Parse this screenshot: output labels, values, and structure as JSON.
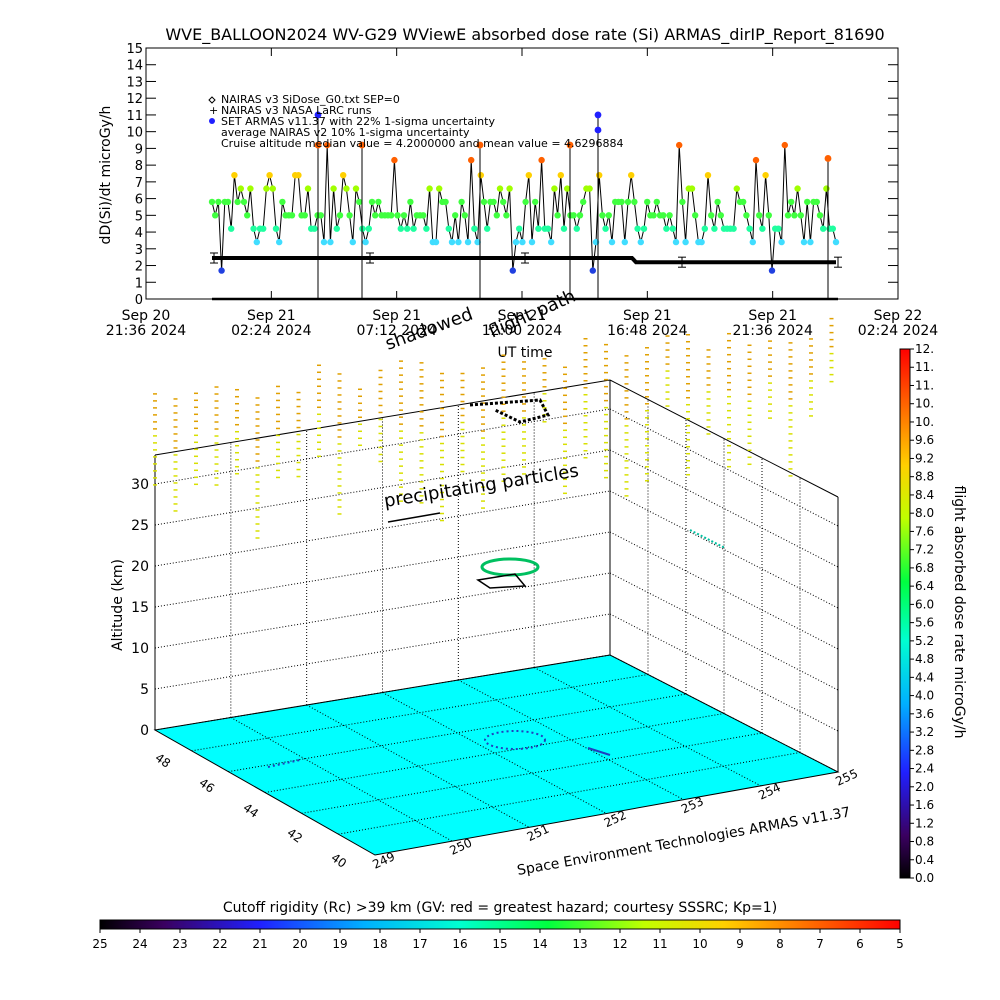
{
  "chart_data": [
    {
      "type": "scatter",
      "title": "WVE_BALLOON2024 WV-G29 WViewE absorbed dose rate (Si) ARMAS_dirIP_Report_81690",
      "ylabel": "dD(Si)/dt microGy/h",
      "xlabel": "UT time",
      "ylim": [
        0,
        15
      ],
      "yticks": [
        "0",
        "1",
        "2",
        "3",
        "4",
        "5",
        "6",
        "7",
        "8",
        "9",
        "10",
        "11",
        "12",
        "13",
        "14",
        "15"
      ],
      "xticks": [
        {
          "day": "Sep 20",
          "time": "21:36 2024"
        },
        {
          "day": "Sep 21",
          "time": "02:24 2024"
        },
        {
          "day": "Sep 21",
          "time": "07:12 2024"
        },
        {
          "day": "Sep 21",
          "time": "12:00 2024"
        },
        {
          "day": "Sep 21",
          "time": "16:48 2024"
        },
        {
          "day": "Sep 21",
          "time": "21:36 2024"
        },
        {
          "day": "Sep 22",
          "time": "02:24 2024"
        }
      ],
      "legend": [
        {
          "symbol": "diamond",
          "text": "NAIRAS v3 SiDose_G0.txt SEP=0"
        },
        {
          "symbol": "plus",
          "text": "NAIRAS v3 NASA LaRC runs"
        },
        {
          "symbol": "dot",
          "text": "SET ARMAS v11.37 with 22% 1-sigma uncertainty"
        },
        {
          "symbol": "none",
          "text": "average NAIRAS v2 10% 1-sigma uncertainty"
        },
        {
          "symbol": "none",
          "text": "Cruise altitude median value = 4.2000000 and mean value = 4.6296884"
        }
      ],
      "series": [
        {
          "values_summary": "ARMAS dose rate mostly 3-6 microGy/h, spikes to 8-11"
        },
        {
          "values_summary": "NAIRAS model approximately 2.5 microGy/h, dropping to 2.2 late"
        }
      ]
    },
    {
      "type": "scatter",
      "zlabel": "Altitude (km)",
      "zticks": [
        "0",
        "5",
        "10",
        "15",
        "20",
        "25",
        "30"
      ],
      "lat_ticks": [
        "40",
        "42",
        "44",
        "46",
        "48"
      ],
      "lon_ticks": [
        "249",
        "250",
        "251",
        "252",
        "253",
        "254",
        "255"
      ],
      "annotations": {
        "precipitating": "precipitating particles",
        "flightpath": "flight path",
        "shadow": "shadowed",
        "credit": "Space Environment Technologies ARMAS v11.37"
      },
      "colorbar": {
        "label": "flight absorbed dose rate microGy/h",
        "ticks": [
          "0.0",
          "0.4",
          "0.8",
          "1.2",
          "1.6",
          "2.0",
          "2.4",
          "2.8",
          "3.2",
          "3.6",
          "4.0",
          "4.4",
          "4.8",
          "5.2",
          "5.6",
          "6.0",
          "6.4",
          "6.8",
          "7.2",
          "7.6",
          "8.0",
          "8.4",
          "8.8",
          "9.2",
          "9.6",
          "10.",
          "10.",
          "11.",
          "11.",
          "12."
        ]
      }
    },
    {
      "type": "heatmap",
      "title": "Cutoff rigidity (Rc) >39 km (GV: red = greatest hazard; courtesy SSSRC; Kp=1)",
      "ticks": [
        "25",
        "24",
        "23",
        "22",
        "21",
        "20",
        "19",
        "18",
        "17",
        "16",
        "15",
        "14",
        "13",
        "12",
        "11",
        "10",
        "9",
        "8",
        "7",
        "6",
        "5"
      ]
    }
  ],
  "colors": {
    "floor": "#00ffff",
    "nairas": "#000000",
    "armas_high": "#ff4000",
    "armas_mid": "#00ff60",
    "armas_low": "#40ddff"
  }
}
